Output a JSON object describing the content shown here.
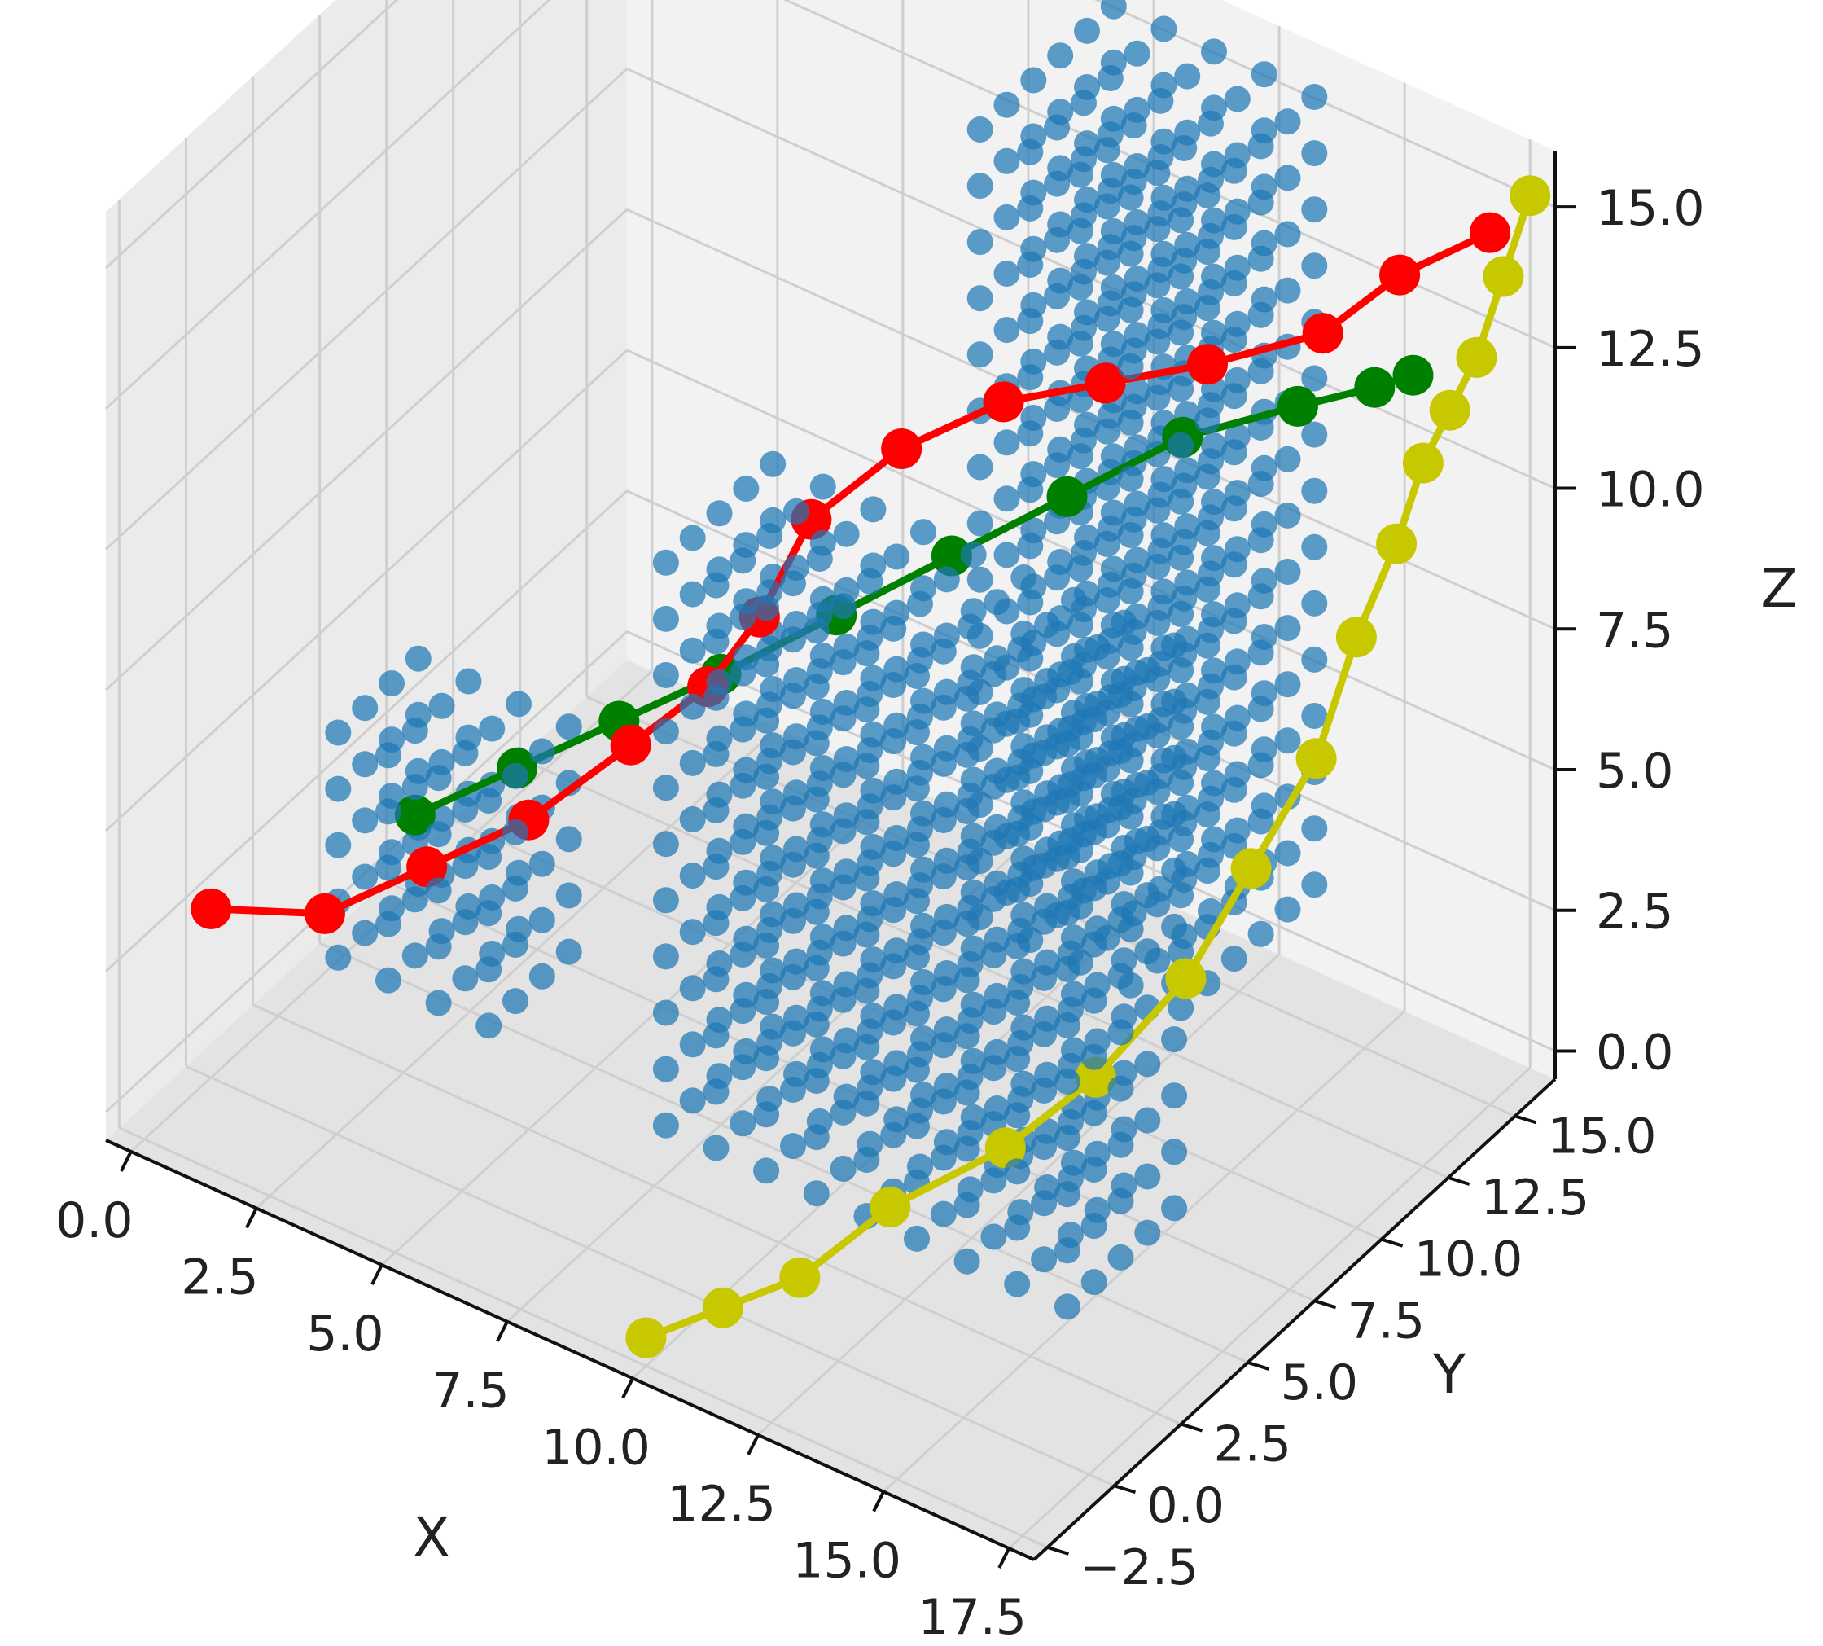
{
  "chart_data": {
    "type": "scatter",
    "projection": "3d",
    "title": "",
    "xlabel": "X",
    "ylabel": "Y",
    "zlabel": "Z",
    "xlim": [
      -0.5,
      18.0
    ],
    "ylim": [
      -3.0,
      16.5
    ],
    "zlim": [
      -0.5,
      16.0
    ],
    "xticks": [
      "0.0",
      "2.5",
      "5.0",
      "7.5",
      "10.0",
      "12.5",
      "15.0",
      "17.5"
    ],
    "yticks": [
      "−2.5",
      "0.0",
      "2.5",
      "5.0",
      "7.5",
      "10.0",
      "12.5",
      "15.0"
    ],
    "zticks": [
      "0.0",
      "2.5",
      "5.0",
      "7.5",
      "10.0",
      "12.5",
      "15.0"
    ],
    "grid": true,
    "legend": "none",
    "obstacles": {
      "color": "#1f77b4",
      "spacing": 1,
      "boxes": [
        {
          "x": [
            2,
            5
          ],
          "y": [
            1,
            4
          ],
          "z": [
            2,
            6
          ]
        },
        {
          "x": [
            8,
            16
          ],
          "y": [
            2,
            6
          ],
          "z": [
            1,
            11
          ]
        },
        {
          "x": [
            10,
            14
          ],
          "y": [
            10,
            15
          ],
          "z": [
            2,
            16
          ]
        }
      ]
    },
    "series": [
      {
        "color": "#ff0000",
        "points": [
          [
            0,
            0,
            2.5
          ],
          [
            2,
            0.5,
            3.0
          ],
          [
            3.5,
            1.5,
            4.0
          ],
          [
            5,
            2.5,
            5.0
          ],
          [
            6.5,
            3.5,
            6.5
          ],
          [
            7.5,
            4.5,
            7.5
          ],
          [
            8,
            5.5,
            8.5
          ],
          [
            8.5,
            6.5,
            10.0
          ],
          [
            9.5,
            8,
            11.0
          ],
          [
            11,
            9,
            12.0
          ],
          [
            12.5,
            10,
            12.5
          ],
          [
            14,
            11,
            13.0
          ],
          [
            15.5,
            12.5,
            13.5
          ],
          [
            16.5,
            13.5,
            14.5
          ],
          [
            17.5,
            15,
            15.0
          ]
        ]
      },
      {
        "color": "#008000",
        "points": [
          [
            3,
            2,
            4.5
          ],
          [
            4.5,
            3,
            5.5
          ],
          [
            6,
            4,
            6.5
          ],
          [
            7.5,
            5,
            7.5
          ],
          [
            9,
            6.5,
            8.5
          ],
          [
            10.5,
            8,
            9.5
          ],
          [
            12,
            9.5,
            10.5
          ],
          [
            13.5,
            11,
            11.5
          ],
          [
            15,
            12.5,
            12.0
          ],
          [
            16,
            13.5,
            12.3
          ],
          [
            16.5,
            14,
            12.5
          ]
        ]
      },
      {
        "color": "#c8c800",
        "points": [
          [
            10,
            -2.5,
            0.0
          ],
          [
            11,
            -1.5,
            0.5
          ],
          [
            12,
            -0.5,
            1.0
          ],
          [
            13,
            1,
            2.0
          ],
          [
            14.5,
            2.5,
            3.0
          ],
          [
            15.5,
            4,
            4.0
          ],
          [
            16.5,
            5.5,
            5.5
          ],
          [
            17,
            7,
            7.0
          ],
          [
            17.5,
            8.5,
            8.5
          ],
          [
            17.5,
            10,
            10.0
          ],
          [
            17.5,
            11.5,
            11.0
          ],
          [
            17.5,
            12.5,
            12.0
          ],
          [
            17.5,
            13.5,
            12.5
          ],
          [
            17.5,
            14.5,
            13.0
          ],
          [
            17.5,
            15.5,
            14.0
          ],
          [
            17.5,
            16.5,
            15.0
          ]
        ]
      }
    ]
  }
}
